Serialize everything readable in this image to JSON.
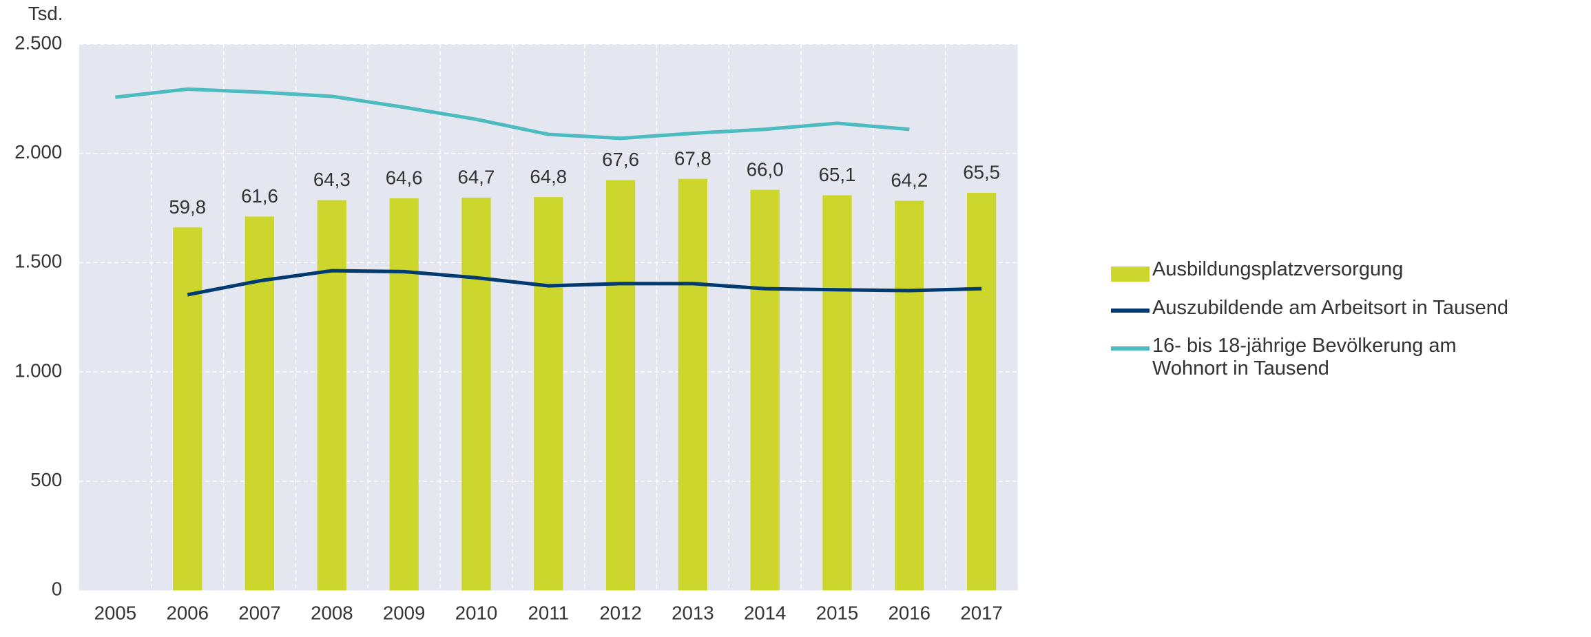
{
  "chart_data": {
    "type": "bar_line",
    "y_label": "Tsd.",
    "categories": [
      "2005",
      "2006",
      "2007",
      "2008",
      "2009",
      "2010",
      "2011",
      "2012",
      "2013",
      "2014",
      "2015",
      "2016",
      "2017"
    ],
    "series": [
      {
        "name": "Ausbildungsplatzversorgung",
        "type": "bar",
        "axis": "y2",
        "color": "#cdd62c",
        "values": [
          null,
          59.8,
          61.6,
          64.3,
          64.6,
          64.7,
          64.8,
          67.6,
          67.8,
          66.0,
          65.1,
          64.2,
          65.5
        ],
        "value_labels": [
          null,
          "59,8",
          "61,6",
          "64,3",
          "64,6",
          "64,7",
          "64,8",
          "67,6",
          "67,8",
          "66,0",
          "65,1",
          "64,2",
          "65,5"
        ]
      },
      {
        "name": "Auszubildende am Arbeitsort in Tausend",
        "type": "line",
        "color": "#003a70",
        "values": [
          null,
          1353,
          1417,
          1463,
          1459,
          1431,
          1394,
          1404,
          1404,
          1381,
          1376,
          1372,
          1381
        ]
      },
      {
        "name": "16- bis 18-jährige Bevölkerung am Wohnort in Tausend",
        "type": "line",
        "color": "#4dbcc0",
        "values": [
          2257,
          2294,
          2280,
          2261,
          2211,
          2156,
          2087,
          2069,
          2092,
          2110,
          2138,
          2110,
          null
        ]
      }
    ],
    "ylim": [
      0,
      2500
    ],
    "yticks": [
      0,
      500,
      {
        "value": 1000,
        "label": "1.000"
      },
      {
        "value": 1500,
        "label": "1.500"
      },
      {
        "value": 2000,
        "label": "2.000"
      },
      {
        "value": 2500,
        "label": "2.500"
      }
    ],
    "y2lim": [
      0,
      90
    ],
    "grid": true,
    "legend": "right"
  }
}
